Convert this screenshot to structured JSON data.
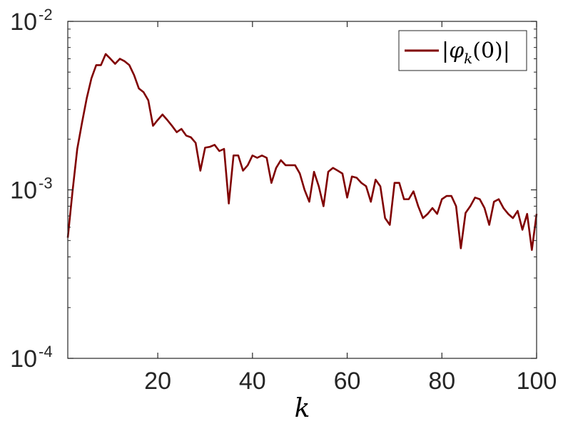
{
  "chart_data": {
    "type": "line",
    "xlabel": "k",
    "ylabel": "",
    "xlim": [
      1,
      100
    ],
    "ylim": [
      0.0001,
      0.01
    ],
    "y_scale": "log",
    "grid": false,
    "legend_placement": "top-right",
    "x_ticks": [
      20,
      40,
      60,
      80,
      100
    ],
    "x_tick_labels": [
      "20",
      "40",
      "60",
      "80",
      "100"
    ],
    "y_ticks": [
      {
        "value": 0.0001,
        "base": "10",
        "exp": "-4"
      },
      {
        "value": 0.001,
        "base": "10",
        "exp": "-3"
      },
      {
        "value": 0.01,
        "base": "10",
        "exp": "-2"
      }
    ],
    "series": [
      {
        "name": "|φk(0)|",
        "legend_parts": {
          "pre": "|",
          "phi": "φ",
          "sub": "k",
          "post": "(0)|"
        },
        "color": "#800000",
        "x": [
          1,
          2,
          3,
          4,
          5,
          6,
          7,
          8,
          9,
          10,
          11,
          12,
          13,
          14,
          15,
          16,
          17,
          18,
          19,
          20,
          21,
          22,
          23,
          24,
          25,
          26,
          27,
          28,
          29,
          30,
          31,
          32,
          33,
          34,
          35,
          36,
          37,
          38,
          39,
          40,
          41,
          42,
          43,
          44,
          45,
          46,
          47,
          48,
          49,
          50,
          51,
          52,
          53,
          54,
          55,
          56,
          57,
          58,
          59,
          60,
          61,
          62,
          63,
          64,
          65,
          66,
          67,
          68,
          69,
          70,
          71,
          72,
          73,
          74,
          75,
          76,
          77,
          78,
          79,
          80,
          81,
          82,
          83,
          84,
          85,
          86,
          87,
          88,
          89,
          90,
          91,
          92,
          93,
          94,
          95,
          96,
          97,
          98,
          99,
          100
        ],
        "y": [
          0.00052,
          0.00098,
          0.00175,
          0.0025,
          0.0035,
          0.0046,
          0.0055,
          0.0055,
          0.0064,
          0.006,
          0.0056,
          0.006,
          0.0058,
          0.0055,
          0.0048,
          0.004,
          0.0038,
          0.0034,
          0.0024,
          0.0026,
          0.0028,
          0.0026,
          0.0024,
          0.0022,
          0.0023,
          0.0021,
          0.00205,
          0.0019,
          0.0013,
          0.00178,
          0.0018,
          0.00185,
          0.0017,
          0.00175,
          0.00083,
          0.0016,
          0.0016,
          0.0013,
          0.0014,
          0.0016,
          0.00155,
          0.0016,
          0.00155,
          0.0011,
          0.00135,
          0.0015,
          0.0014,
          0.0014,
          0.0014,
          0.00125,
          0.001,
          0.00085,
          0.00128,
          0.00105,
          0.0008,
          0.00128,
          0.00135,
          0.0013,
          0.00125,
          0.0009,
          0.0012,
          0.00118,
          0.0011,
          0.00105,
          0.00085,
          0.00115,
          0.00105,
          0.00068,
          0.00062,
          0.0011,
          0.0011,
          0.00088,
          0.00088,
          0.00098,
          0.0008,
          0.00068,
          0.00072,
          0.00078,
          0.00072,
          0.00088,
          0.00092,
          0.00092,
          0.0008,
          0.00045,
          0.00073,
          0.0008,
          0.0009,
          0.00088,
          0.00078,
          0.00062,
          0.00085,
          0.00088,
          0.00078,
          0.00072,
          0.00068,
          0.00075,
          0.00058,
          0.00072,
          0.00044,
          0.00072
        ]
      }
    ]
  }
}
